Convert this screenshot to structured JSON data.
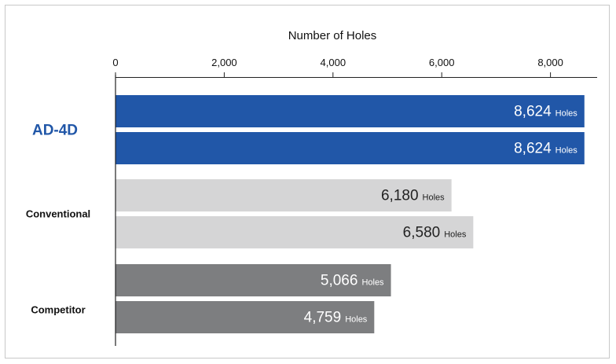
{
  "chart_data": {
    "type": "bar",
    "orientation": "horizontal",
    "xlabel": "Number of Holes",
    "xlim": [
      0,
      8700
    ],
    "x_ticks": [
      {
        "value": 0,
        "label": "0"
      },
      {
        "value": 2000,
        "label": "2,000"
      },
      {
        "value": 4000,
        "label": "4,000"
      },
      {
        "value": 6000,
        "label": "6,000"
      },
      {
        "value": 8000,
        "label": "8,000"
      }
    ],
    "unit_label": "Holes",
    "groups": [
      {
        "name": "AD-4D",
        "color": "#2157a8",
        "label_color": "#2157a8",
        "bars": [
          {
            "value": 8624,
            "label": "8,624"
          },
          {
            "value": 8624,
            "label": "8,624"
          }
        ]
      },
      {
        "name": "Conventional",
        "color": "#d5d5d6",
        "label_color": "#111111",
        "bars": [
          {
            "value": 6180,
            "label": "6,180"
          },
          {
            "value": 6580,
            "label": "6,580"
          }
        ]
      },
      {
        "name": "Competitor",
        "color": "#7d7e80",
        "label_color": "#111111",
        "bars": [
          {
            "value": 5066,
            "label": "5,066"
          },
          {
            "value": 4759,
            "label": "4,759"
          }
        ]
      }
    ],
    "value_text_colors": {
      "dark_bar": "#ffffff",
      "light_bar": "#222222"
    },
    "grid": false
  }
}
